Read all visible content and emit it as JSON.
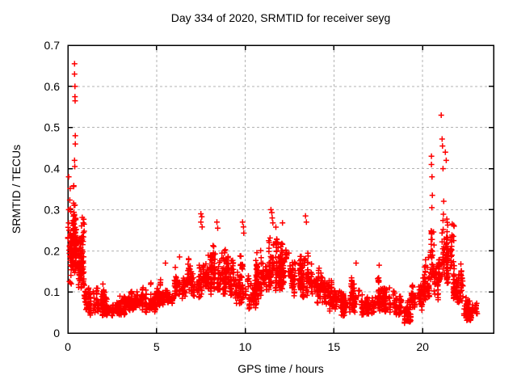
{
  "window": {
    "background": "#ffffff"
  },
  "chart_data": {
    "type": "scatter",
    "title": "Day 334 of 2020, SRMTID for receiver seyg",
    "xlabel": "GPS time / hours",
    "ylabel": "SRMTID / TECUs",
    "xlim": [
      0,
      24
    ],
    "ylim": [
      0,
      0.7
    ],
    "xticks": [
      0,
      5,
      10,
      15,
      20
    ],
    "yticks": [
      0,
      0.1,
      0.2,
      0.3,
      0.4,
      0.5,
      0.6,
      0.7
    ],
    "grid": true,
    "grid_color": "#b3b3b3",
    "axis_color": "#000000",
    "marker": "plus",
    "marker_color": "#ff0000",
    "marker_size": 7,
    "seed": 334,
    "series": [
      {
        "name": "SRMTID",
        "envelope": [
          [
            0.0,
            0.2,
            24,
            0.08,
            0.38
          ],
          [
            0.2,
            0.55,
            150,
            0.14,
            0.4
          ],
          [
            0.55,
            0.95,
            100,
            0.1,
            0.34
          ],
          [
            0.95,
            1.3,
            50,
            0.04,
            0.13
          ],
          [
            1.3,
            2.2,
            95,
            0.04,
            0.14
          ],
          [
            2.2,
            3.2,
            100,
            0.04,
            0.11
          ],
          [
            3.2,
            4.2,
            100,
            0.05,
            0.13
          ],
          [
            4.2,
            5.0,
            85,
            0.05,
            0.14
          ],
          [
            5.0,
            6.0,
            100,
            0.06,
            0.15
          ],
          [
            6.0,
            6.7,
            75,
            0.07,
            0.19
          ],
          [
            6.7,
            7.5,
            90,
            0.08,
            0.23
          ],
          [
            7.5,
            8.6,
            130,
            0.09,
            0.27
          ],
          [
            8.6,
            9.4,
            110,
            0.09,
            0.24
          ],
          [
            9.4,
            10.0,
            70,
            0.06,
            0.26
          ],
          [
            10.0,
            10.6,
            65,
            0.05,
            0.16
          ],
          [
            10.6,
            11.2,
            85,
            0.08,
            0.24
          ],
          [
            11.2,
            11.8,
            95,
            0.1,
            0.29
          ],
          [
            11.8,
            12.6,
            115,
            0.1,
            0.26
          ],
          [
            12.6,
            13.2,
            90,
            0.08,
            0.24
          ],
          [
            13.2,
            13.8,
            85,
            0.08,
            0.27
          ],
          [
            13.8,
            14.6,
            85,
            0.06,
            0.2
          ],
          [
            14.6,
            15.4,
            85,
            0.05,
            0.17
          ],
          [
            15.4,
            16.0,
            70,
            0.04,
            0.12
          ],
          [
            16.0,
            16.5,
            60,
            0.05,
            0.17
          ],
          [
            16.5,
            17.3,
            85,
            0.04,
            0.12
          ],
          [
            17.3,
            17.8,
            60,
            0.05,
            0.16
          ],
          [
            17.8,
            18.8,
            95,
            0.04,
            0.13
          ],
          [
            18.8,
            19.3,
            50,
            0.02,
            0.1
          ],
          [
            19.3,
            20.1,
            85,
            0.05,
            0.18
          ],
          [
            20.1,
            20.45,
            50,
            0.08,
            0.22
          ],
          [
            20.45,
            20.65,
            28,
            0.1,
            0.37
          ],
          [
            20.65,
            21.0,
            45,
            0.08,
            0.22
          ],
          [
            21.0,
            21.75,
            115,
            0.1,
            0.4
          ],
          [
            21.75,
            22.3,
            90,
            0.07,
            0.2
          ],
          [
            22.3,
            22.75,
            75,
            0.03,
            0.12
          ],
          [
            22.75,
            23.05,
            25,
            0.04,
            0.09
          ]
        ],
        "outliers": [
          [
            0.05,
            0.38
          ],
          [
            0.05,
            0.3
          ],
          [
            0.07,
            0.25
          ],
          [
            0.1,
            0.21
          ],
          [
            0.38,
            0.655
          ],
          [
            0.38,
            0.63
          ],
          [
            0.4,
            0.6
          ],
          [
            0.4,
            0.575
          ],
          [
            0.41,
            0.565
          ],
          [
            0.42,
            0.48
          ],
          [
            0.42,
            0.46
          ],
          [
            0.38,
            0.42
          ],
          [
            0.39,
            0.405
          ],
          [
            5.5,
            0.17
          ],
          [
            6.3,
            0.185
          ],
          [
            7.5,
            0.29
          ],
          [
            7.55,
            0.283
          ],
          [
            7.5,
            0.27
          ],
          [
            7.57,
            0.258
          ],
          [
            8.4,
            0.27
          ],
          [
            8.45,
            0.255
          ],
          [
            9.85,
            0.27
          ],
          [
            9.9,
            0.258
          ],
          [
            9.92,
            0.243
          ],
          [
            11.45,
            0.3
          ],
          [
            11.5,
            0.293
          ],
          [
            11.52,
            0.28
          ],
          [
            11.56,
            0.268
          ],
          [
            12.1,
            0.268
          ],
          [
            13.4,
            0.285
          ],
          [
            13.45,
            0.27
          ],
          [
            16.25,
            0.17
          ],
          [
            17.55,
            0.165
          ],
          [
            20.5,
            0.43
          ],
          [
            20.5,
            0.41
          ],
          [
            20.53,
            0.38
          ],
          [
            20.55,
            0.335
          ],
          [
            20.52,
            0.305
          ],
          [
            21.05,
            0.53
          ],
          [
            21.1,
            0.472
          ],
          [
            21.12,
            0.455
          ],
          [
            21.28,
            0.44
          ],
          [
            21.33,
            0.42
          ],
          [
            21.15,
            0.4
          ]
        ]
      }
    ]
  }
}
